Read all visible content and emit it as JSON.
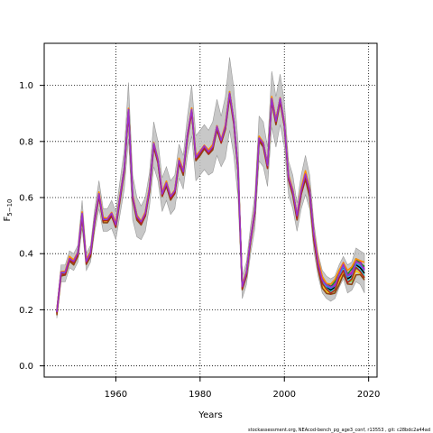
{
  "chart_data": {
    "type": "line",
    "title": "",
    "xlabel": "Years",
    "ylabel_main": "F",
    "ylabel_sub": "5−10",
    "xlim": [
      1943,
      2022
    ],
    "ylim": [
      -0.04,
      1.15
    ],
    "xticks": [
      1960,
      1980,
      2000,
      2020
    ],
    "yticks": [
      0.0,
      0.2,
      0.4,
      0.6,
      0.8,
      1.0
    ],
    "xtick_labels": [
      "1960",
      "1980",
      "2000",
      "2020"
    ],
    "ytick_labels": [
      "0.0",
      "0.2",
      "0.4",
      "0.6",
      "0.8",
      "1.0"
    ],
    "grid": true,
    "years": [
      1946,
      1947,
      1948,
      1949,
      1950,
      1951,
      1952,
      1953,
      1954,
      1955,
      1956,
      1957,
      1958,
      1959,
      1960,
      1961,
      1962,
      1963,
      1964,
      1965,
      1966,
      1967,
      1968,
      1969,
      1970,
      1971,
      1972,
      1973,
      1974,
      1975,
      1976,
      1977,
      1978,
      1979,
      1980,
      1981,
      1982,
      1983,
      1984,
      1985,
      1986,
      1987,
      1988,
      1989,
      1990,
      1991,
      1992,
      1993,
      1994,
      1995,
      1996,
      1997,
      1998,
      1999,
      2000,
      2001,
      2002,
      2003,
      2004,
      2005,
      2006,
      2007,
      2008,
      2009,
      2010,
      2011,
      2012,
      2013,
      2014,
      2015,
      2016,
      2017,
      2018,
      2019
    ],
    "base_F": [
      0.19,
      0.33,
      0.33,
      0.38,
      0.37,
      0.4,
      0.54,
      0.37,
      0.4,
      0.52,
      0.61,
      0.52,
      0.52,
      0.54,
      0.5,
      0.6,
      0.7,
      0.91,
      0.6,
      0.53,
      0.51,
      0.54,
      0.63,
      0.79,
      0.73,
      0.61,
      0.65,
      0.6,
      0.62,
      0.73,
      0.69,
      0.82,
      0.91,
      0.74,
      0.76,
      0.78,
      0.76,
      0.78,
      0.85,
      0.8,
      0.85,
      0.97,
      0.87,
      0.7,
      0.28,
      0.33,
      0.45,
      0.55,
      0.81,
      0.79,
      0.71,
      0.95,
      0.87,
      0.95,
      0.86,
      0.67,
      0.62,
      0.53,
      0.62,
      0.68,
      0.62,
      0.46,
      0.36,
      0.3,
      0.28,
      0.27,
      0.28,
      0.32,
      0.35,
      0.31,
      0.32,
      0.36,
      0.35,
      0.33
    ],
    "ci_half_width": [
      0.02,
      0.03,
      0.03,
      0.03,
      0.03,
      0.03,
      0.05,
      0.03,
      0.03,
      0.04,
      0.05,
      0.04,
      0.04,
      0.05,
      0.05,
      0.06,
      0.07,
      0.1,
      0.08,
      0.07,
      0.06,
      0.06,
      0.06,
      0.08,
      0.07,
      0.06,
      0.06,
      0.06,
      0.06,
      0.06,
      0.06,
      0.07,
      0.09,
      0.08,
      0.08,
      0.08,
      0.08,
      0.09,
      0.1,
      0.09,
      0.11,
      0.13,
      0.12,
      0.1,
      0.04,
      0.04,
      0.05,
      0.06,
      0.08,
      0.08,
      0.07,
      0.1,
      0.09,
      0.09,
      0.08,
      0.06,
      0.06,
      0.05,
      0.06,
      0.07,
      0.06,
      0.05,
      0.04,
      0.04,
      0.04,
      0.04,
      0.04,
      0.04,
      0.04,
      0.05,
      0.05,
      0.06,
      0.06,
      0.07
    ],
    "series": [
      {
        "color": "#000000",
        "offsets": [
          0,
          0.0
        ]
      },
      {
        "color": "#DF536B",
        "offsets": [
          0,
          0.01
        ]
      },
      {
        "color": "#61D04F",
        "offsets": [
          0,
          -0.01
        ]
      },
      {
        "color": "#2297E6",
        "offsets": [
          0,
          0.005
        ]
      },
      {
        "color": "#28E2E5",
        "offsets": [
          0,
          -0.005
        ]
      },
      {
        "color": "#CD0BBC",
        "offsets": [
          0,
          0.012
        ]
      },
      {
        "color": "#F5C710",
        "offsets": [
          0,
          -0.012
        ]
      },
      {
        "color": "#8B4513",
        "offsets": [
          0,
          -0.02
        ]
      },
      {
        "color": "#228B22",
        "offsets": [
          0,
          0.015
        ]
      },
      {
        "color": "#FF8C00",
        "offsets": [
          0,
          0.02
        ]
      },
      {
        "color": "#B22222",
        "offsets": [
          0,
          -0.008
        ]
      },
      {
        "color": "#9932CC",
        "offsets": [
          0,
          0.008
        ]
      }
    ],
    "band_color": "#bebebe"
  },
  "footer_text": "stockassessment.org, NEAcod-bench_pg_age3_conf, r13553 , git: c28bdc2a44ad"
}
